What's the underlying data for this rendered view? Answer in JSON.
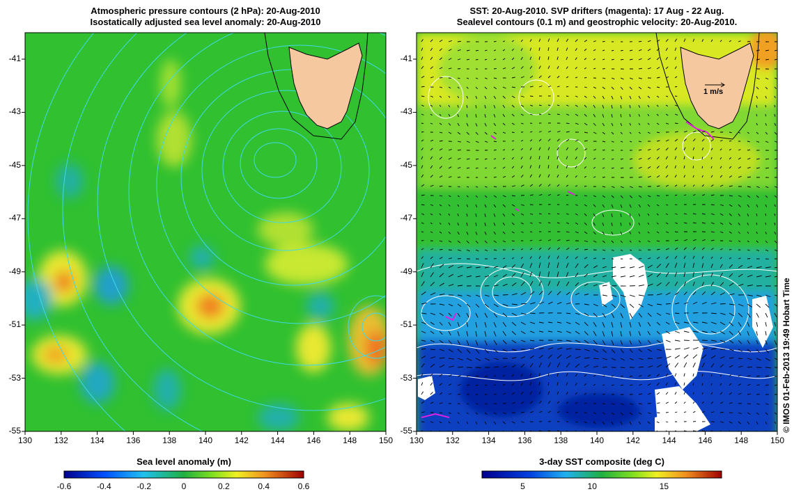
{
  "left_panel": {
    "title_line1": "Atmospheric pressure contours (2 hPa): 20-Aug-2010",
    "title_line2": "Isostatically adjusted sea level anomaly: 20-Aug-2010",
    "colorbar_title": "Sea level anomaly (m)",
    "colorbar_ticks": [
      "-0.6",
      "-0.4",
      "-0.2",
      "0",
      "0.2",
      "0.4",
      "0.6"
    ]
  },
  "right_panel": {
    "title_line1": "SST: 20-Aug-2010. SVP drifters (magenta): 17 Aug - 22 Aug.",
    "title_line2": "Sealevel contours (0.1 m) and geostrophic velocity: 20-Aug-2010.",
    "colorbar_title": "3-day SST composite (deg C)",
    "colorbar_ticks": [
      "5",
      "10",
      "15"
    ],
    "velocity_scale_label": "1 m/s"
  },
  "x_ticks": [
    "130",
    "132",
    "134",
    "136",
    "138",
    "140",
    "142",
    "144",
    "146",
    "148",
    "150"
  ],
  "y_ticks": [
    "-41",
    "-43",
    "-45",
    "-47",
    "-49",
    "-51",
    "-53",
    "-55"
  ],
  "credit": "© IMOS 01-Feb-2013 19:49 Hobart Time",
  "colors": {
    "land": "#f6c8a0",
    "pressure_contour": "#40d8e8",
    "sst_contour": "#ffffff",
    "drifter": "#e020e0"
  }
}
